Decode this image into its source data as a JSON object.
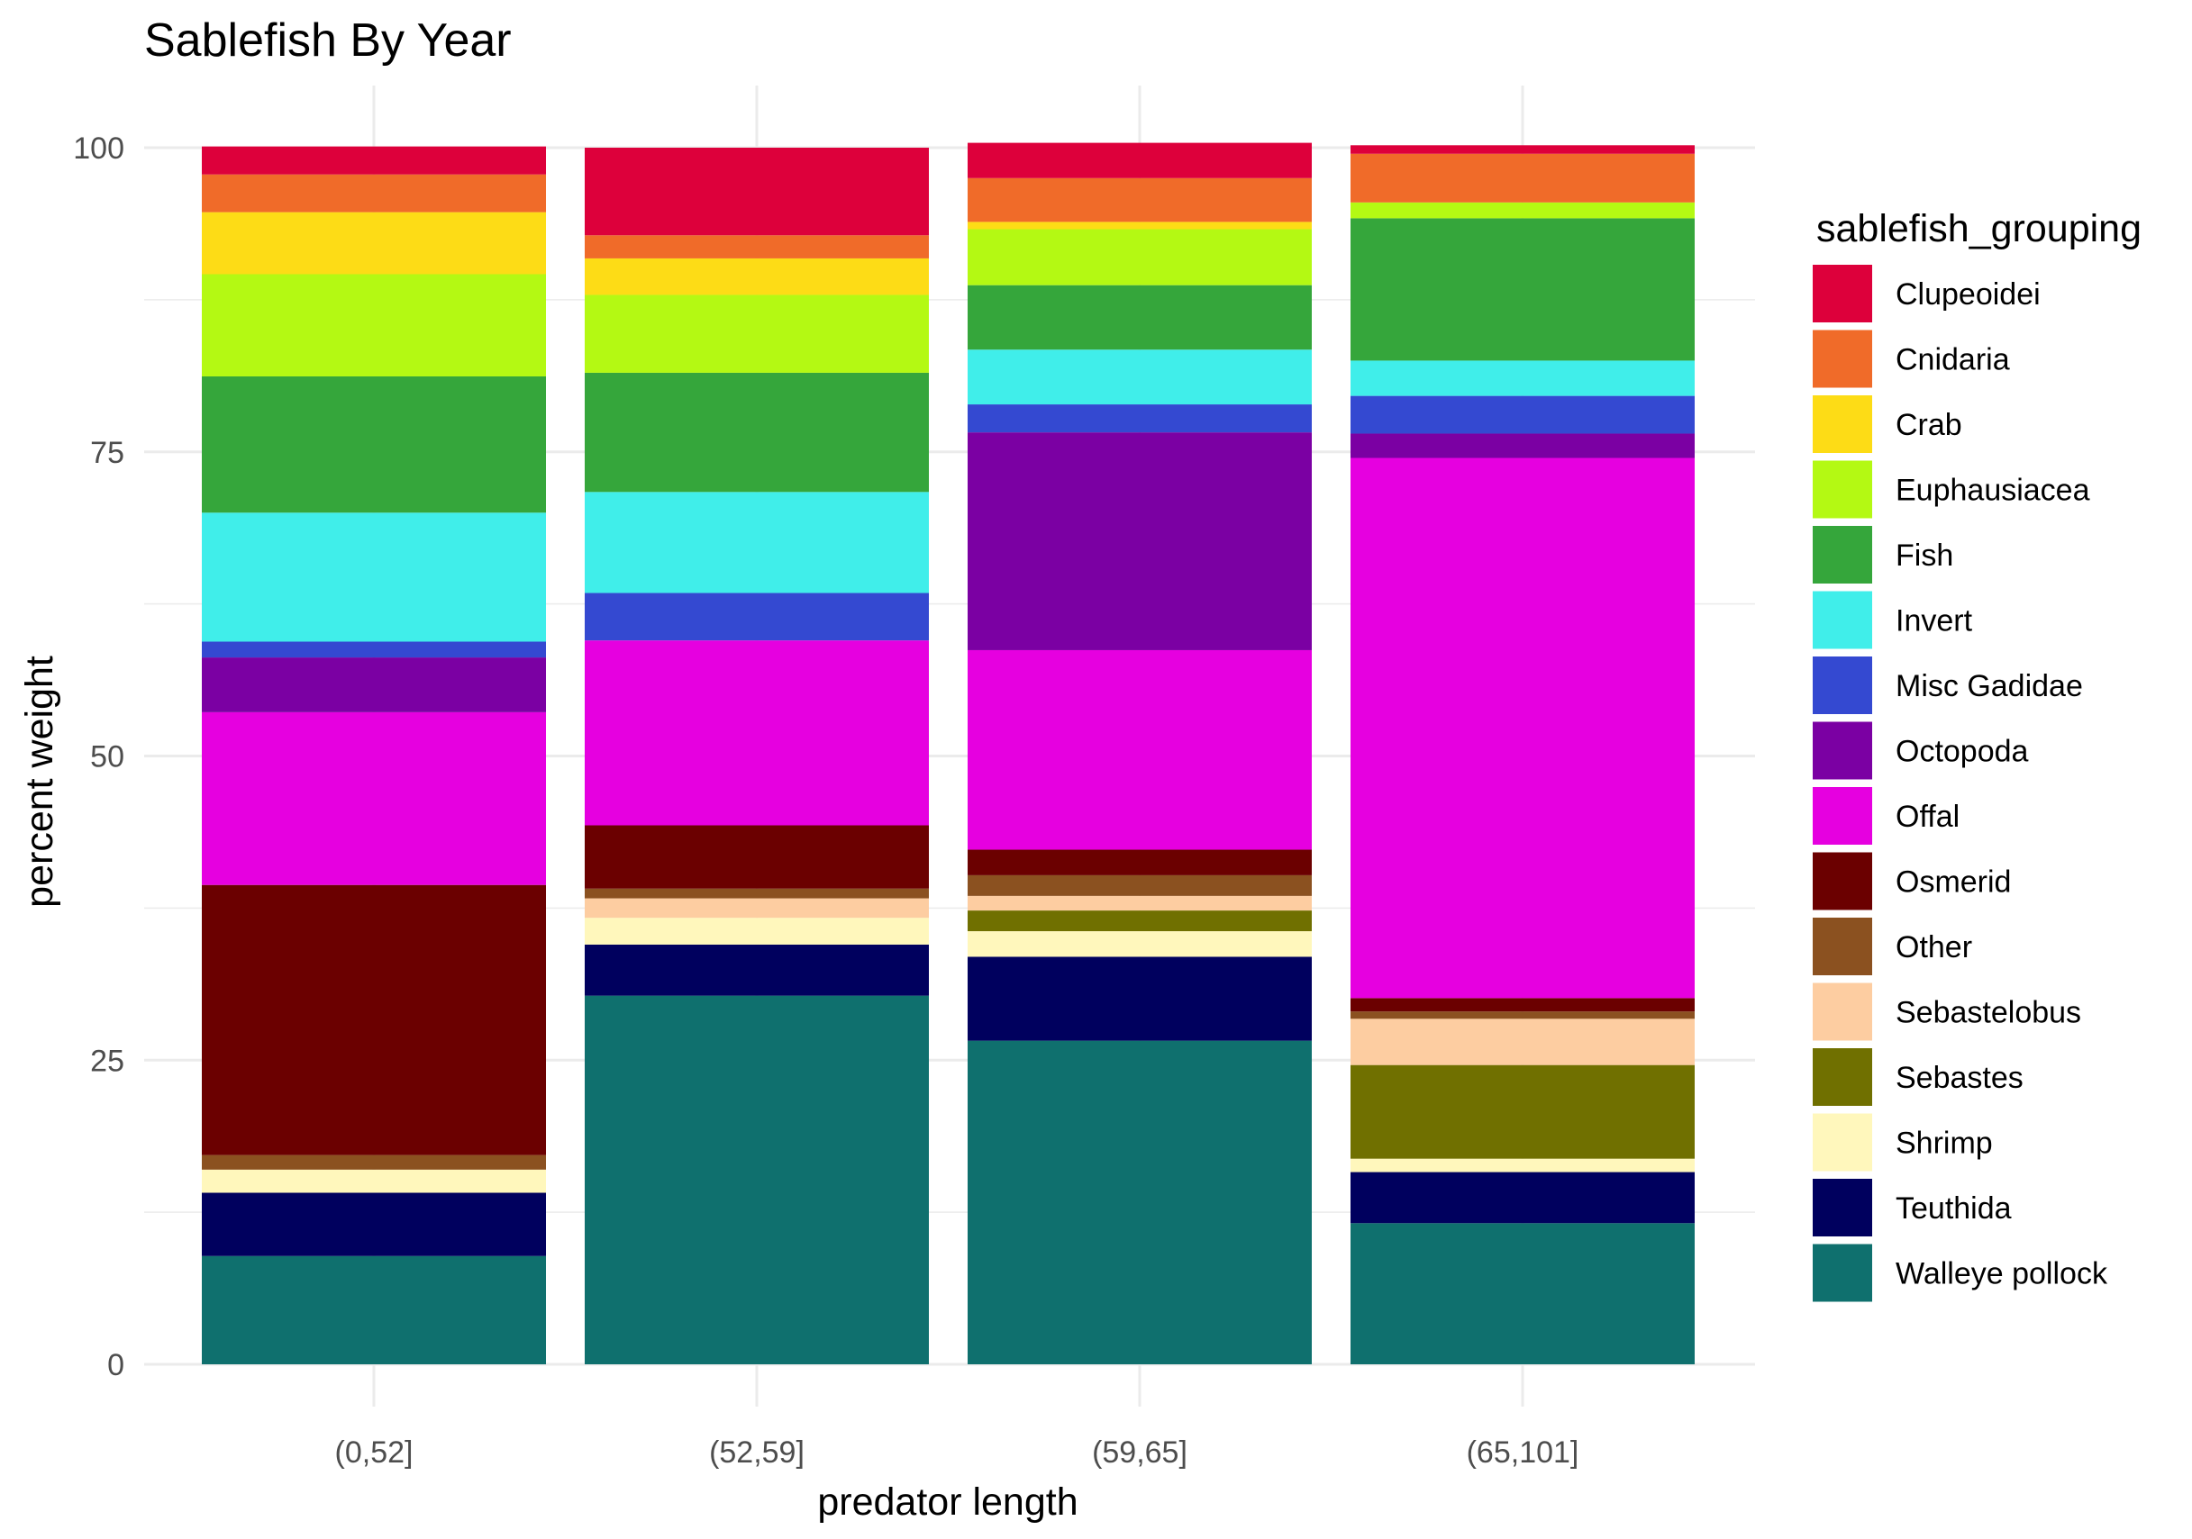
{
  "chart_data": {
    "type": "bar",
    "stacked": true,
    "title": "Sablefish By Year",
    "xlabel": "predator length",
    "ylabel": "percent weight",
    "ylim": [
      0,
      100
    ],
    "yticks": [
      0,
      25,
      50,
      75,
      100
    ],
    "grid": true,
    "legend_title": "sablefish_grouping",
    "legend_position": "right",
    "categories": [
      "(0,52]",
      "(52,59]",
      "(59,65]",
      "(65,101]"
    ],
    "series": [
      {
        "name": "Walleye pollock",
        "color": "#0f706e",
        "values": [
          8.9,
          30.3,
          26.6,
          11.6
        ]
      },
      {
        "name": "Teuthida",
        "color": "#00005e",
        "values": [
          5.2,
          4.2,
          6.9,
          4.2
        ]
      },
      {
        "name": "Shrimp",
        "color": "#fff7bc",
        "values": [
          1.9,
          2.2,
          2.1,
          1.1
        ]
      },
      {
        "name": "Sebastes",
        "color": "#707000",
        "values": [
          0.0,
          0.0,
          1.7,
          7.7
        ]
      },
      {
        "name": "Sebastelobus",
        "color": "#fdcda1",
        "values": [
          0.0,
          1.6,
          1.2,
          3.8
        ]
      },
      {
        "name": "Other",
        "color": "#8b5120",
        "values": [
          1.2,
          0.8,
          1.7,
          0.6
        ]
      },
      {
        "name": "Osmerid",
        "color": "#6b0000",
        "values": [
          22.2,
          5.2,
          2.1,
          1.1
        ]
      },
      {
        "name": "Offal",
        "color": "#e600e0",
        "values": [
          14.2,
          15.2,
          16.4,
          44.4
        ]
      },
      {
        "name": "Octopoda",
        "color": "#7b00a3",
        "values": [
          4.5,
          0.0,
          17.9,
          2.0
        ]
      },
      {
        "name": "Misc Gadidae",
        "color": "#3449d1",
        "values": [
          1.3,
          3.9,
          2.3,
          3.1
        ]
      },
      {
        "name": "Invert",
        "color": "#40eeea",
        "values": [
          10.6,
          8.3,
          4.5,
          2.9
        ]
      },
      {
        "name": "Fish",
        "color": "#35a63b",
        "values": [
          11.2,
          9.8,
          5.3,
          11.7
        ]
      },
      {
        "name": "Euphausiacea",
        "color": "#b4f913",
        "values": [
          8.4,
          6.4,
          4.6,
          1.3
        ]
      },
      {
        "name": "Crab",
        "color": "#fddc16",
        "values": [
          5.1,
          3.0,
          0.6,
          0.0
        ]
      },
      {
        "name": "Cnidaria",
        "color": "#f06b29",
        "values": [
          3.1,
          1.9,
          3.6,
          4.0
        ]
      },
      {
        "name": "Clupeoidei",
        "color": "#dd003b",
        "values": [
          2.3,
          7.2,
          2.9,
          0.7
        ]
      }
    ],
    "legend_order": [
      "Clupeoidei",
      "Cnidaria",
      "Crab",
      "Euphausiacea",
      "Fish",
      "Invert",
      "Misc Gadidae",
      "Octopoda",
      "Offal",
      "Osmerid",
      "Other",
      "Sebastelobus",
      "Sebastes",
      "Shrimp",
      "Teuthida",
      "Walleye pollock"
    ]
  }
}
